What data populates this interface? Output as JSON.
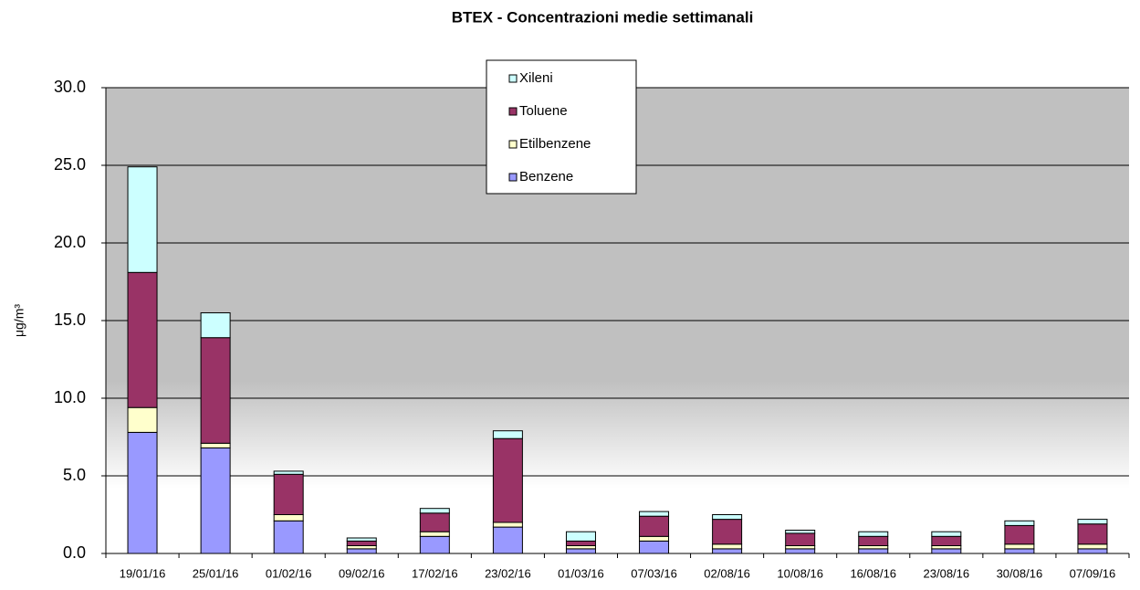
{
  "chart_data": {
    "type": "stacked-bar",
    "title": "BTEX - Concentrazioni medie settimanali",
    "y_label": "μg/m³",
    "categories": [
      "19/01/16",
      "25/01/16",
      "01/02/16",
      "09/02/16",
      "17/02/16",
      "23/02/16",
      "01/03/16",
      "07/03/16",
      "02/08/16",
      "10/08/16",
      "16/08/16",
      "23/08/16",
      "30/08/16",
      "07/09/16"
    ],
    "series": [
      {
        "name": "Benzene",
        "color": "#9999ff",
        "values": [
          7.8,
          6.8,
          2.1,
          0.3,
          1.1,
          1.7,
          0.3,
          0.8,
          0.3,
          0.3,
          0.3,
          0.3,
          0.3,
          0.3
        ]
      },
      {
        "name": "Etilbenzene",
        "color": "#ffffcc",
        "values": [
          1.6,
          0.3,
          0.4,
          0.2,
          0.3,
          0.3,
          0.2,
          0.3,
          0.3,
          0.2,
          0.2,
          0.2,
          0.3,
          0.3
        ]
      },
      {
        "name": "Toluene",
        "color": "#993366",
        "values": [
          8.7,
          6.8,
          2.6,
          0.3,
          1.2,
          5.4,
          0.3,
          1.3,
          1.6,
          0.8,
          0.6,
          0.6,
          1.2,
          1.3
        ]
      },
      {
        "name": "Xileni",
        "color": "#ccffff",
        "values": [
          6.8,
          1.6,
          0.2,
          0.2,
          0.3,
          0.5,
          0.6,
          0.3,
          0.3,
          0.2,
          0.3,
          0.3,
          0.3,
          0.3
        ]
      }
    ],
    "ylim": [
      0,
      30
    ],
    "yticks": [
      {
        "value": 0,
        "label": "0.0"
      },
      {
        "value": 5,
        "label": "5.0"
      },
      {
        "value": 10,
        "label": "10.0"
      },
      {
        "value": 15,
        "label": "15.0"
      },
      {
        "value": 20,
        "label": "20.0"
      },
      {
        "value": 25,
        "label": "25.0"
      },
      {
        "value": 30,
        "label": "30.0"
      }
    ],
    "grid": true
  }
}
